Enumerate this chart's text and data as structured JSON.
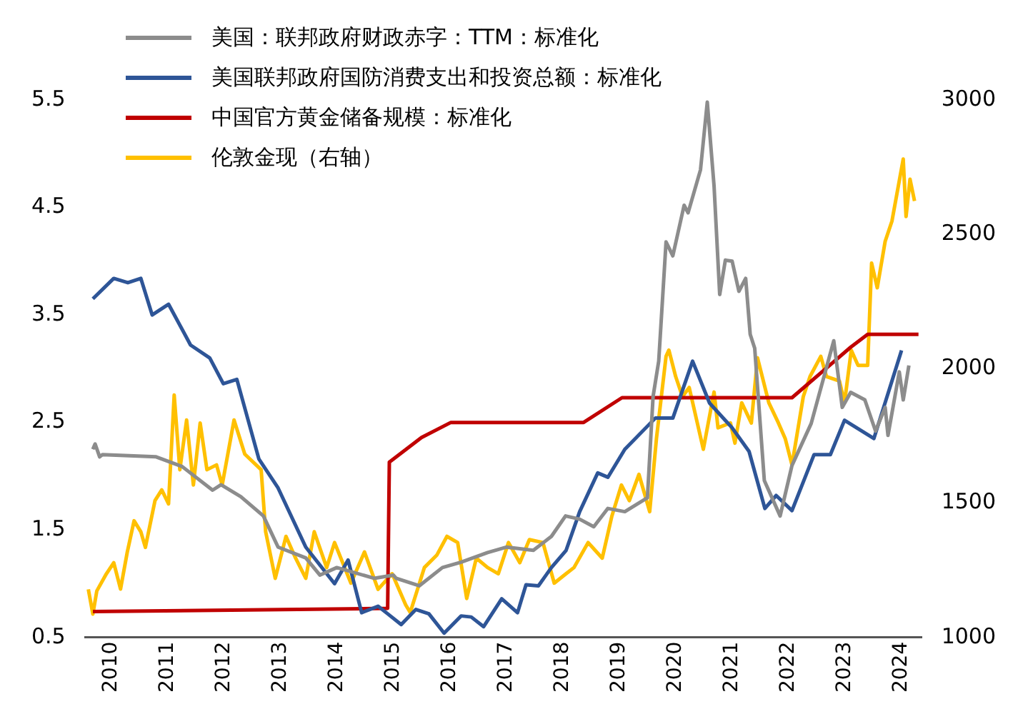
{
  "chart_data": {
    "type": "line",
    "legend": "top left",
    "marker": "none",
    "xlim": [
      2009.55,
      2024.35
    ],
    "xticks": [
      2010,
      2011,
      2012,
      2013,
      2014,
      2015,
      2016,
      2017,
      2018,
      2019,
      2020,
      2021,
      2022,
      2023,
      2024
    ],
    "ylim": [
      0.5,
      5.5
    ],
    "yticks": [
      0.5,
      1.5,
      2.5,
      3.5,
      4.5,
      5.5
    ],
    "y2lim": [
      1000,
      3000
    ],
    "y2ticks": [
      1000,
      1500,
      2000,
      2500,
      3000
    ],
    "series": [
      {
        "name": "美国：联邦政府财政赤字：TTM：标准化",
        "color": "#8c8c8c",
        "x": [
          2009.68,
          2009.72,
          2009.8,
          2009.85,
          2010.8,
          2011.26,
          2011.8,
          2011.95,
          2012.3,
          2012.7,
          2012.96,
          2013.45,
          2013.7,
          2014.0,
          2014.66,
          2015.0,
          2015.05,
          2015.46,
          2015.87,
          2016.2,
          2016.67,
          2017.0,
          2017.48,
          2017.8,
          2018.05,
          2018.3,
          2018.55,
          2018.8,
          2019.1,
          2019.5,
          2019.6,
          2019.7,
          2019.83,
          2019.95,
          2020.15,
          2020.22,
          2020.44,
          2020.56,
          2020.68,
          2020.78,
          2020.88,
          2021.0,
          2021.12,
          2021.24,
          2021.32,
          2021.4,
          2021.57,
          2021.85,
          2022.06,
          2022.4,
          2022.8,
          2022.95,
          2023.1,
          2023.35,
          2023.54,
          2023.71,
          2023.76,
          2023.96,
          2024.03,
          2024.13
        ],
        "values": [
          2.25,
          2.3,
          2.18,
          2.2,
          2.18,
          2.09,
          1.87,
          1.92,
          1.81,
          1.63,
          1.34,
          1.24,
          1.08,
          1.15,
          1.05,
          1.08,
          1.05,
          0.98,
          1.15,
          1.2,
          1.29,
          1.34,
          1.31,
          1.44,
          1.63,
          1.6,
          1.53,
          1.7,
          1.67,
          1.8,
          2.74,
          3.07,
          4.18,
          4.05,
          4.52,
          4.45,
          4.85,
          5.48,
          4.7,
          3.69,
          4.01,
          4.0,
          3.72,
          3.84,
          3.32,
          3.19,
          1.96,
          1.63,
          2.1,
          2.49,
          3.26,
          2.64,
          2.78,
          2.71,
          2.42,
          2.64,
          2.38,
          2.97,
          2.71,
          3.03
        ]
      },
      {
        "name": "美国联邦政府国防消费支出和投资总额：标准化",
        "color": "#2e5597",
        "x": [
          2009.68,
          2010.05,
          2010.3,
          2010.53,
          2010.73,
          2011.02,
          2011.41,
          2011.75,
          2011.99,
          2012.23,
          2012.62,
          2012.96,
          2013.45,
          2013.96,
          2014.2,
          2014.44,
          2014.73,
          2014.9,
          2015.14,
          2015.4,
          2015.63,
          2015.9,
          2016.2,
          2016.38,
          2016.6,
          2016.92,
          2017.2,
          2017.35,
          2017.57,
          2017.8,
          2018.06,
          2018.3,
          2018.62,
          2018.8,
          2019.1,
          2019.64,
          2019.95,
          2020.3,
          2020.6,
          2021.0,
          2021.3,
          2021.58,
          2021.78,
          2022.06,
          2022.45,
          2022.74,
          2022.99,
          2023.51,
          2024.0
        ],
        "values": [
          3.65,
          3.84,
          3.8,
          3.84,
          3.5,
          3.6,
          3.22,
          3.1,
          2.86,
          2.9,
          2.16,
          1.89,
          1.34,
          1.0,
          1.22,
          0.73,
          0.79,
          0.72,
          0.62,
          0.76,
          0.72,
          0.54,
          0.7,
          0.69,
          0.6,
          0.86,
          0.73,
          0.99,
          0.98,
          1.15,
          1.31,
          1.67,
          2.03,
          1.99,
          2.25,
          2.54,
          2.54,
          3.07,
          2.68,
          2.45,
          2.23,
          1.7,
          1.82,
          1.68,
          2.2,
          2.2,
          2.52,
          2.35,
          3.17
        ]
      },
      {
        "name": "中国官方黄金储备规模：标准化",
        "color": "#c00000",
        "x": [
          2009.68,
          2014.9,
          2014.93,
          2015.5,
          2016.02,
          2018.37,
          2019.05,
          2022.06,
          2023.1,
          2023.4,
          2024.3
        ],
        "values": [
          0.74,
          0.77,
          2.13,
          2.36,
          2.5,
          2.5,
          2.73,
          2.73,
          3.2,
          3.32,
          3.32
        ]
      },
      {
        "name": "伦敦金现（右轴）",
        "color": "#ffc000",
        "axis": "y2",
        "x": [
          2009.6,
          2009.68,
          2009.75,
          2009.92,
          2010.05,
          2010.17,
          2010.29,
          2010.41,
          2010.53,
          2010.61,
          2010.78,
          2010.9,
          2011.02,
          2011.12,
          2011.22,
          2011.34,
          2011.46,
          2011.58,
          2011.7,
          2011.87,
          2011.97,
          2012.18,
          2012.37,
          2012.66,
          2012.74,
          2012.91,
          2013.1,
          2013.27,
          2013.45,
          2013.6,
          2013.82,
          2013.96,
          2014.25,
          2014.49,
          2014.73,
          2014.98,
          2015.22,
          2015.3,
          2015.55,
          2015.77,
          2015.95,
          2016.14,
          2016.3,
          2016.47,
          2016.67,
          2016.86,
          2017.04,
          2017.24,
          2017.41,
          2017.65,
          2017.85,
          2018.06,
          2018.2,
          2018.45,
          2018.7,
          2018.87,
          2019.04,
          2019.18,
          2019.35,
          2019.54,
          2019.66,
          2019.83,
          2019.88,
          2020.0,
          2020.12,
          2020.24,
          2020.49,
          2020.68,
          2020.75,
          2020.97,
          2021.05,
          2021.17,
          2021.34,
          2021.45,
          2021.65,
          2021.82,
          2021.94,
          2022.06,
          2022.26,
          2022.38,
          2022.57,
          2022.67,
          2022.9,
          2022.99,
          2023.11,
          2023.23,
          2023.4,
          2023.47,
          2023.57,
          2023.71,
          2023.83,
          2024.03,
          2024.08,
          2024.15,
          2024.23
        ],
        "values": [
          1179,
          1087,
          1173,
          1237,
          1278,
          1180,
          1318,
          1434,
          1393,
          1335,
          1509,
          1549,
          1497,
          1902,
          1624,
          1809,
          1567,
          1798,
          1624,
          1642,
          1567,
          1809,
          1682,
          1624,
          1393,
          1220,
          1376,
          1295,
          1220,
          1393,
          1260,
          1353,
          1202,
          1318,
          1179,
          1237,
          1121,
          1093,
          1260,
          1306,
          1376,
          1353,
          1145,
          1295,
          1260,
          1237,
          1353,
          1278,
          1364,
          1353,
          1202,
          1237,
          1260,
          1353,
          1295,
          1451,
          1567,
          1509,
          1607,
          1468,
          1740,
          2046,
          2069,
          1971,
          1896,
          1930,
          1700,
          1913,
          1780,
          1798,
          1723,
          1873,
          1798,
          2040,
          1873,
          1798,
          1740,
          1642,
          1896,
          1971,
          2046,
          1971,
          1954,
          1873,
          2069,
          2012,
          2012,
          2393,
          2301,
          2474,
          2549,
          2780,
          2566,
          2705,
          2624
        ]
      }
    ]
  }
}
